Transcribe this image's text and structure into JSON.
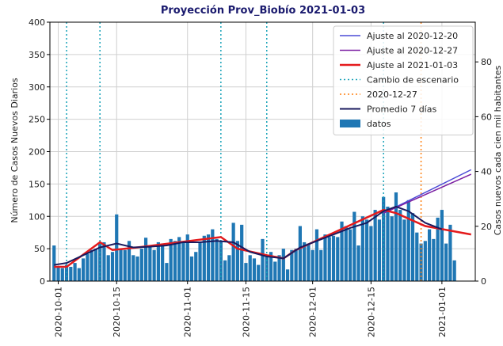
{
  "chart_data": {
    "type": "combo",
    "title": "Proyección Prov_Biobío 2021-01-03",
    "ylabel": "Número de Casos Nuevos Diarios",
    "y2label": "Casos nuevos cada cien mil habitantes",
    "xlim": [
      "2020-09-29",
      "2021-01-09"
    ],
    "ylim": [
      0,
      400
    ],
    "y2lim": [
      0,
      94.5
    ],
    "yticks": [
      0,
      50,
      100,
      150,
      200,
      250,
      300,
      350,
      400
    ],
    "y2ticks": [
      0,
      20,
      40,
      60,
      80
    ],
    "xticks": [
      "2020-10-01",
      "2020-10-15",
      "2020-11-01",
      "2020-11-15",
      "2020-12-01",
      "2020-12-15",
      "2021-01-01"
    ],
    "grid": true,
    "legend": "upper right",
    "series": [
      {
        "name": "Ajuste al 2020-12-20",
        "kind": "line",
        "color": "#4b4bd6",
        "width": 1.5,
        "x": [
          "2020-12-18",
          "2021-01-08"
        ],
        "values": [
          105,
          172
        ]
      },
      {
        "name": "Ajuste al 2020-12-27",
        "kind": "line",
        "color": "#7b1fa2",
        "width": 1.5,
        "x": [
          "2020-12-18",
          "2021-01-08"
        ],
        "values": [
          105,
          165
        ]
      },
      {
        "name": "Ajuste al 2021-01-03",
        "kind": "line",
        "color": "#e41a1c",
        "width": 2.5,
        "x": [
          "2020-09-30",
          "2020-10-03",
          "2020-10-11",
          "2020-10-14",
          "2020-10-20",
          "2020-11-09",
          "2020-11-13",
          "2020-11-20",
          "2020-11-24",
          "2020-11-27",
          "2020-12-18",
          "2020-12-21",
          "2020-12-28",
          "2021-01-08"
        ],
        "values": [
          22,
          22,
          60,
          48,
          52,
          68,
          50,
          40,
          35,
          48,
          110,
          105,
          85,
          72
        ]
      },
      {
        "name": "Cambio de escenario",
        "kind": "vline",
        "color": "#17a2b8",
        "dash": "2,3",
        "x": [
          "2020-10-03",
          "2020-10-11",
          "2020-11-09",
          "2020-11-20",
          "2020-12-18"
        ]
      },
      {
        "name": "2020-12-27",
        "kind": "vline",
        "color": "#ff7f0e",
        "dash": "2,3",
        "x": [
          "2020-12-27"
        ]
      },
      {
        "name": "Promedio 7 días",
        "kind": "line",
        "color": "#1a1a5e",
        "width": 2,
        "x": [
          "2020-09-30",
          "2020-10-03",
          "2020-10-07",
          "2020-10-11",
          "2020-10-15",
          "2020-10-19",
          "2020-10-23",
          "2020-10-27",
          "2020-10-31",
          "2020-11-04",
          "2020-11-08",
          "2020-11-12",
          "2020-11-16",
          "2020-11-20",
          "2020-11-24",
          "2020-11-28",
          "2020-12-02",
          "2020-12-06",
          "2020-12-10",
          "2020-12-14",
          "2020-12-18",
          "2020-12-21",
          "2020-12-24",
          "2020-12-28",
          "2021-01-01"
        ],
        "values": [
          25,
          28,
          40,
          52,
          58,
          52,
          53,
          55,
          60,
          60,
          62,
          60,
          45,
          38,
          35,
          52,
          62,
          72,
          82,
          90,
          108,
          115,
          108,
          90,
          80
        ]
      },
      {
        "name": "datos",
        "kind": "bar",
        "color": "#1f77b4",
        "x_start": "2020-09-30",
        "values": [
          55,
          22,
          20,
          25,
          22,
          28,
          20,
          35,
          42,
          48,
          50,
          58,
          60,
          40,
          45,
          103,
          50,
          48,
          62,
          40,
          38,
          50,
          67,
          55,
          48,
          60,
          58,
          28,
          65,
          62,
          68,
          60,
          72,
          38,
          45,
          60,
          70,
          72,
          80,
          65,
          62,
          32,
          40,
          90,
          62,
          87,
          28,
          40,
          35,
          25,
          65,
          38,
          45,
          30,
          40,
          50,
          18,
          48,
          50,
          85,
          60,
          58,
          48,
          80,
          48,
          72,
          68,
          70,
          68,
          92,
          85,
          80,
          107,
          55,
          100,
          95,
          85,
          110,
          95,
          130,
          115,
          100,
          137,
          110,
          95,
          125,
          105,
          75,
          58,
          62,
          80,
          65,
          98,
          110,
          58,
          87,
          32
        ]
      }
    ]
  }
}
